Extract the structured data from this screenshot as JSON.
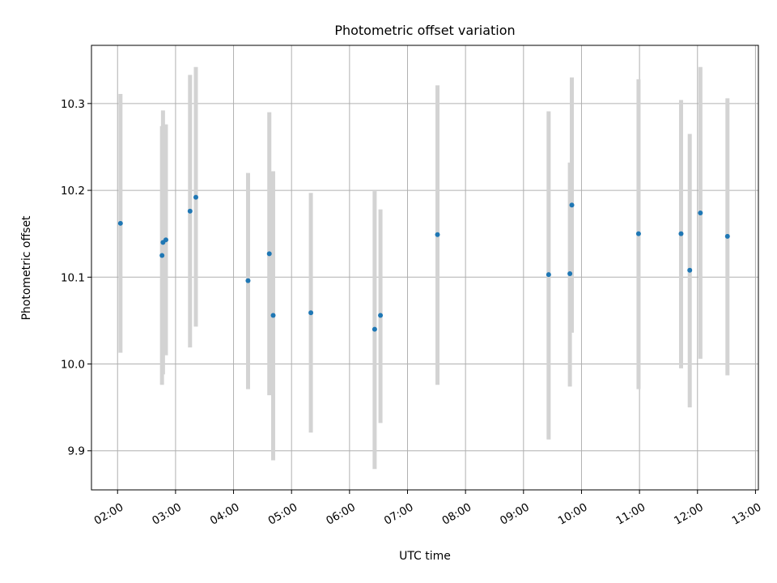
{
  "chart_data": {
    "type": "scatter",
    "title": "Photometric offset variation",
    "xlabel": "UTC time",
    "ylabel": "Photometric offset",
    "x_ticks": [
      "02:00",
      "03:00",
      "04:00",
      "05:00",
      "06:00",
      "07:00",
      "08:00",
      "09:00",
      "10:00",
      "11:00",
      "12:00",
      "13:00"
    ],
    "y_ticks": [
      9.9,
      10.0,
      10.1,
      10.2,
      10.3
    ],
    "y_tick_labels": [
      "9.9",
      "10.0",
      "10.1",
      "10.2",
      "10.3"
    ],
    "xlim": [
      "01:33",
      "13:03"
    ],
    "ylim": [
      9.855,
      10.367
    ],
    "grid": true,
    "colors": {
      "points": "#1f77b4",
      "errorbars": "#d3d3d3"
    },
    "points": [
      {
        "x": "02:03",
        "y": 10.162,
        "ylo": 10.013,
        "yhi": 10.311
      },
      {
        "x": "02:46",
        "y": 10.125,
        "ylo": 9.976,
        "yhi": 10.274
      },
      {
        "x": "02:47",
        "y": 10.14,
        "ylo": 9.988,
        "yhi": 10.292
      },
      {
        "x": "02:50",
        "y": 10.143,
        "ylo": 10.01,
        "yhi": 10.276
      },
      {
        "x": "03:15",
        "y": 10.176,
        "ylo": 10.019,
        "yhi": 10.333
      },
      {
        "x": "03:21",
        "y": 10.192,
        "ylo": 10.043,
        "yhi": 10.342
      },
      {
        "x": "04:15",
        "y": 10.096,
        "ylo": 9.971,
        "yhi": 10.22
      },
      {
        "x": "04:37",
        "y": 10.127,
        "ylo": 9.964,
        "yhi": 10.29
      },
      {
        "x": "04:41",
        "y": 10.056,
        "ylo": 9.889,
        "yhi": 10.222
      },
      {
        "x": "05:20",
        "y": 10.059,
        "ylo": 9.921,
        "yhi": 10.197
      },
      {
        "x": "06:26",
        "y": 10.04,
        "ylo": 9.879,
        "yhi": 10.199
      },
      {
        "x": "06:32",
        "y": 10.056,
        "ylo": 9.932,
        "yhi": 10.178
      },
      {
        "x": "07:31",
        "y": 10.149,
        "ylo": 9.976,
        "yhi": 10.321
      },
      {
        "x": "09:26",
        "y": 10.103,
        "ylo": 9.913,
        "yhi": 10.291
      },
      {
        "x": "09:48",
        "y": 10.104,
        "ylo": 9.974,
        "yhi": 10.232
      },
      {
        "x": "09:50",
        "y": 10.183,
        "ylo": 10.036,
        "yhi": 10.33
      },
      {
        "x": "10:59",
        "y": 10.15,
        "ylo": 9.971,
        "yhi": 10.328
      },
      {
        "x": "11:43",
        "y": 10.15,
        "ylo": 9.995,
        "yhi": 10.304
      },
      {
        "x": "11:52",
        "y": 10.108,
        "ylo": 9.95,
        "yhi": 10.265
      },
      {
        "x": "12:03",
        "y": 10.174,
        "ylo": 10.006,
        "yhi": 10.342
      },
      {
        "x": "12:31",
        "y": 10.147,
        "ylo": 9.987,
        "yhi": 10.306
      }
    ]
  }
}
